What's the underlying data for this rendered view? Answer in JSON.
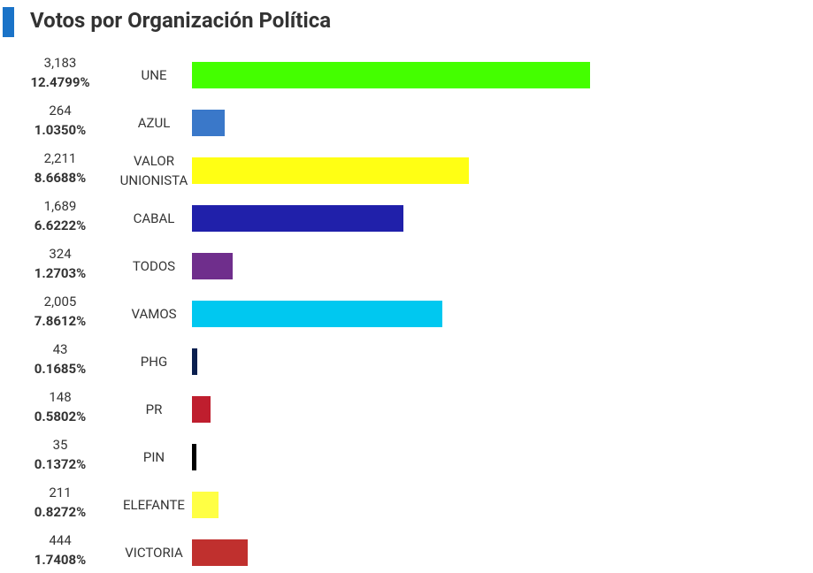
{
  "chart_data": {
    "type": "bar",
    "title": "Votos por Organización Política",
    "categories": [
      "UNE",
      "AZUL",
      "VALOR UNIONISTA",
      "CABAL",
      "TODOS",
      "VAMOS",
      "PHG",
      "PR",
      "PIN",
      "ELEFANTE",
      "VICTORIA"
    ],
    "values": [
      3183,
      264,
      2211,
      1689,
      324,
      2005,
      43,
      148,
      35,
      211,
      444
    ],
    "value_labels": [
      "3,183",
      "264",
      "2,211",
      "1,689",
      "324",
      "2,005",
      "43",
      "148",
      "35",
      "211",
      "444"
    ],
    "percent_values": [
      12.4799,
      1.035,
      8.6688,
      6.6222,
      1.2703,
      7.8612,
      0.1685,
      0.5802,
      0.1372,
      0.8272,
      1.7408
    ],
    "percent_labels": [
      "12.4799%",
      "1.0350%",
      "8.6688%",
      "6.6222%",
      "1.2703%",
      "7.8612%",
      "0.1685%",
      "0.5802%",
      "0.1372%",
      "0.8272%",
      "1.7408%"
    ],
    "colors": [
      "#44ff00",
      "#3a78c9",
      "#ffff14",
      "#2020aa",
      "#6f2e8c",
      "#00c8f0",
      "#0a1f4f",
      "#bf1e2e",
      "#000000",
      "#ffff44",
      "#c0302e"
    ]
  }
}
